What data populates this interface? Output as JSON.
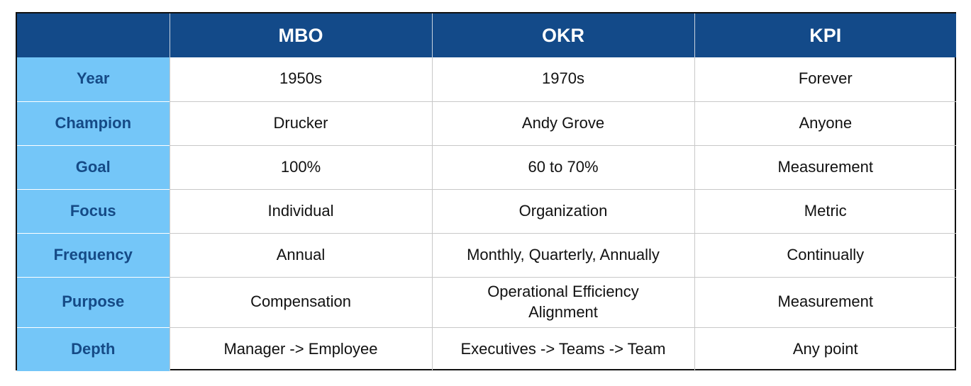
{
  "header": {
    "corner": "",
    "columns": [
      "MBO",
      "OKR",
      "KPI"
    ]
  },
  "rows": [
    {
      "label": "Year",
      "mbo": "1950s",
      "okr": "1970s",
      "kpi": "Forever"
    },
    {
      "label": "Champion",
      "mbo": "Drucker",
      "okr": "Andy Grove",
      "kpi": "Anyone"
    },
    {
      "label": "Goal",
      "mbo": "100%",
      "okr": "60 to 70%",
      "kpi": "Measurement"
    },
    {
      "label": "Focus",
      "mbo": "Individual",
      "okr": "Organization",
      "kpi": "Metric"
    },
    {
      "label": "Frequency",
      "mbo": "Annual",
      "okr": "Monthly, Quarterly, Annually",
      "kpi": "Continually"
    },
    {
      "label": "Purpose",
      "mbo": "Compensation",
      "okr": [
        "Operational Efficiency",
        "Alignment"
      ],
      "kpi": "Measurement"
    },
    {
      "label": "Depth",
      "mbo": "Manager -> Employee",
      "okr": "Executives -> Teams -> Team",
      "kpi": "Any point"
    }
  ],
  "colors": {
    "header_bg": "#134a89",
    "label_bg": "#74c6f8",
    "label_text": "#154a86"
  }
}
